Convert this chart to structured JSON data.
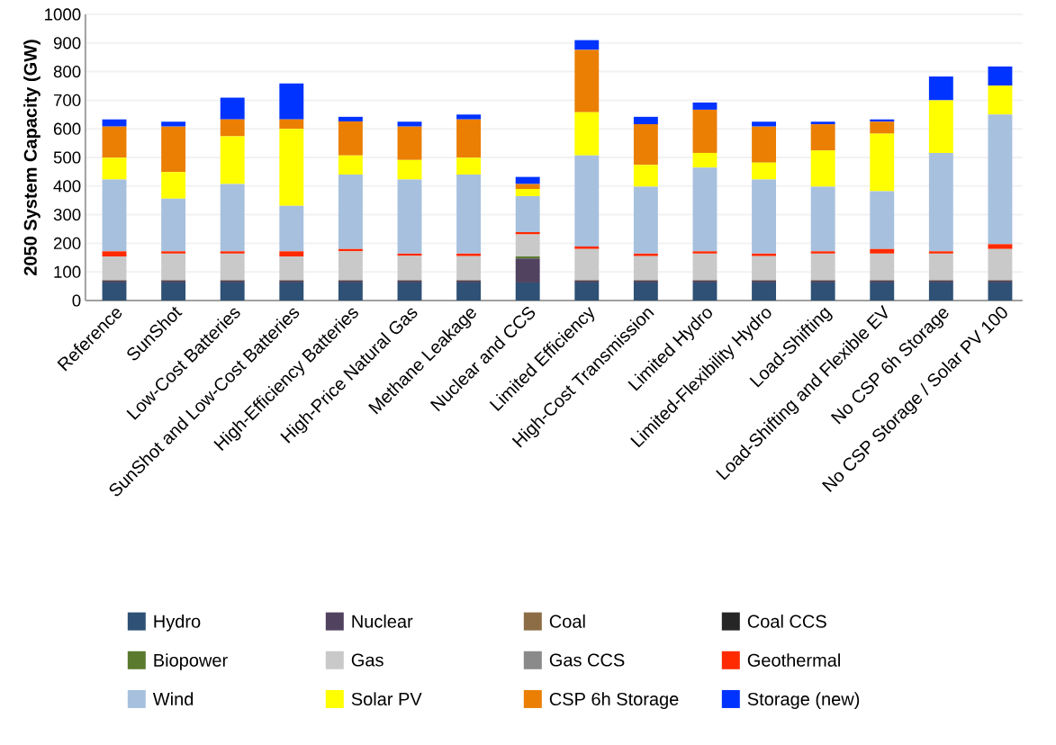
{
  "chart_data": {
    "type": "bar",
    "stacked": true,
    "ylabel": "2050 System Capacity (GW)",
    "categories": [
      "Reference",
      "SunShot",
      "Low-Cost Batteries",
      "SunShot and Low-Cost Batteries",
      "High-Efficiency Batteries",
      "High-Price Natural Gas",
      "Methane Leakage",
      "Nuclear and CCS",
      "Limited Efficiency",
      "High-Cost Transmission",
      "Limited Hydro",
      "Limited-Flexibility Hydro",
      "Load-Shifting",
      "Load-Shifting and Flexible EV",
      "No CSP 6h Storage",
      "No CSP Storage / Solar PV 100"
    ],
    "series": [
      {
        "name": "Hydro",
        "color": "#2e5175",
        "values": [
          63,
          63,
          63,
          63,
          63,
          63,
          63,
          63,
          63,
          63,
          63,
          63,
          63,
          63,
          63,
          63
        ]
      },
      {
        "name": "Nuclear",
        "color": "#51425f",
        "values": [
          7,
          7,
          7,
          7,
          7,
          7,
          7,
          84,
          7,
          7,
          7,
          7,
          7,
          7,
          7,
          7
        ]
      },
      {
        "name": "Coal",
        "color": "#8c6d45",
        "values": [
          1,
          1,
          1,
          1,
          1,
          1,
          1,
          0,
          1,
          1,
          1,
          1,
          1,
          1,
          1,
          1
        ]
      },
      {
        "name": "Coal CCS",
        "color": "#262626",
        "values": [
          0,
          0,
          0,
          0,
          0,
          0,
          0,
          0,
          0,
          0,
          0,
          0,
          0,
          0,
          0,
          0
        ]
      },
      {
        "name": "Biopower",
        "color": "#5a7a2e",
        "values": [
          1,
          1,
          1,
          1,
          1,
          1,
          1,
          7,
          1,
          1,
          1,
          1,
          1,
          1,
          1,
          1
        ]
      },
      {
        "name": "Gas",
        "color": "#c9c9c9",
        "values": [
          82,
          92,
          92,
          82,
          100,
          84,
          83,
          77,
          108,
          83,
          92,
          83,
          92,
          92,
          92,
          108
        ]
      },
      {
        "name": "Gas CCS",
        "color": "#8a8a8a",
        "values": [
          0,
          0,
          0,
          0,
          0,
          0,
          0,
          0,
          0,
          0,
          0,
          0,
          0,
          0,
          0,
          0
        ]
      },
      {
        "name": "Geothermal",
        "color": "#ff2a00",
        "values": [
          18,
          8,
          8,
          18,
          8,
          8,
          9,
          8,
          9,
          9,
          8,
          9,
          8,
          16,
          8,
          17
        ]
      },
      {
        "name": "Wind",
        "color": "#a7c0de",
        "values": [
          251,
          184,
          235,
          159,
          260,
          259,
          276,
          126,
          318,
          234,
          293,
          259,
          226,
          202,
          344,
          453
        ]
      },
      {
        "name": "Solar PV",
        "color": "#ffff00",
        "values": [
          76,
          93,
          167,
          269,
          67,
          68,
          59,
          25,
          151,
          76,
          51,
          59,
          126,
          201,
          184,
          101
        ]
      },
      {
        "name": "CSP 6h Storage",
        "color": "#ea7f04",
        "values": [
          109,
          159,
          59,
          33,
          119,
          117,
          134,
          17,
          218,
          142,
          151,
          126,
          92,
          42,
          0,
          0
        ]
      },
      {
        "name": "Storage (new)",
        "color": "#0033ff",
        "values": [
          25,
          17,
          76,
          126,
          16,
          17,
          17,
          25,
          34,
          26,
          25,
          17,
          9,
          8,
          83,
          67
        ]
      }
    ],
    "ylim": [
      0,
      1000
    ],
    "yticks": [
      0,
      100,
      200,
      300,
      400,
      500,
      600,
      700,
      800,
      900,
      1000
    ],
    "grid": "y",
    "legend": "bottom"
  }
}
